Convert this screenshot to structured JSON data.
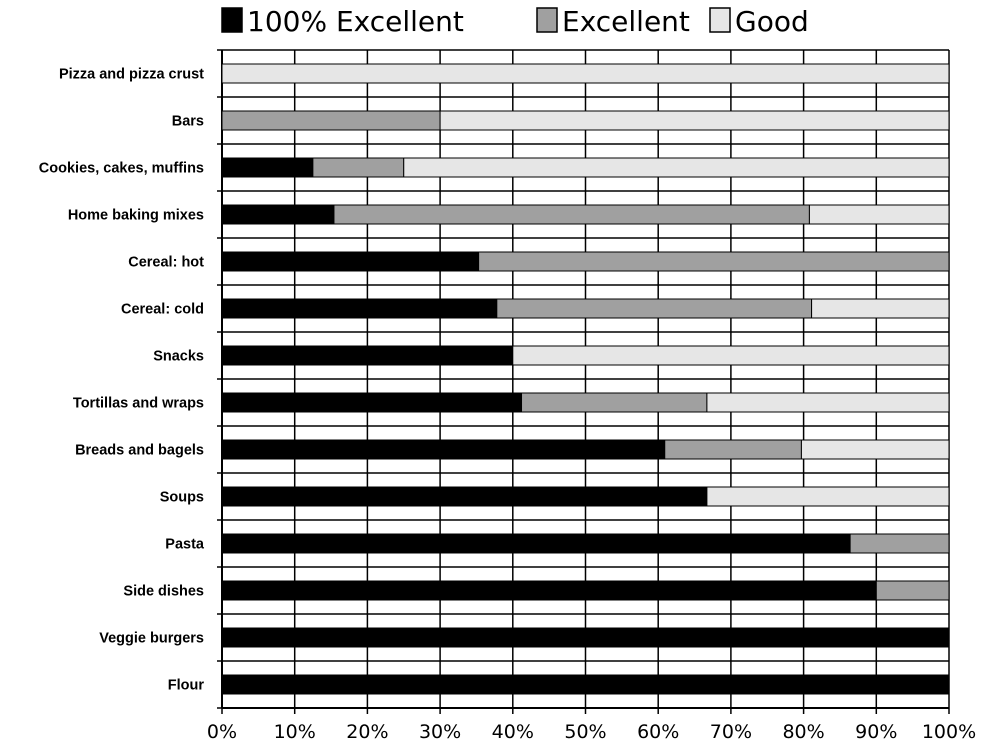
{
  "chart_data": {
    "type": "bar",
    "orientation": "horizontal",
    "stacked": true,
    "percent_stacked": true,
    "categories": [
      "Pizza and pizza crust",
      "Bars",
      "Cookies, cakes, muffins",
      "Home baking mixes",
      "Cereal: hot",
      "Cereal: cold",
      "Snacks",
      "Tortillas and wraps",
      "Breads and bagels",
      "Soups",
      "Pasta",
      "Side dishes",
      "Veggie burgers",
      "Flour"
    ],
    "series": [
      {
        "name": "100% Excellent",
        "color": "#000000",
        "values": [
          0,
          0,
          12.5,
          15.4,
          35.3,
          37.8,
          40,
          41.2,
          60.9,
          66.7,
          86.4,
          90,
          100,
          100
        ]
      },
      {
        "name": "Excellent",
        "color": "#a0a0a0",
        "values": [
          0,
          30,
          12.5,
          65.4,
          64.7,
          43.3,
          0,
          25.5,
          18.8,
          0,
          13.6,
          10,
          0,
          0
        ]
      },
      {
        "name": "Good",
        "color": "#e6e6e6",
        "values": [
          100,
          70,
          75,
          19.2,
          0,
          18.9,
          60,
          33.3,
          20.3,
          33.3,
          0,
          0,
          0,
          0
        ]
      }
    ],
    "x_tick_labels": [
      "0%",
      "10%",
      "20%",
      "30%",
      "40%",
      "50%",
      "60%",
      "70%",
      "80%",
      "90%",
      "100%"
    ],
    "xlim": [
      0,
      100
    ],
    "title": "",
    "xlabel": "",
    "ylabel": "",
    "grid": true,
    "legend_position": "top"
  }
}
